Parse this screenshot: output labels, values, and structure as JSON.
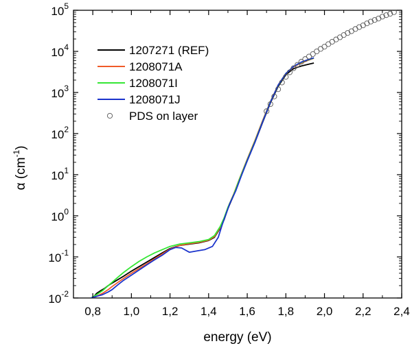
{
  "chart_data": {
    "type": "line",
    "xlabel": "energy (eV)",
    "ylabel": "α (cm-1)",
    "ylabel_symbol": "α",
    "ylabel_unit": "cm",
    "ylabel_unit_exp": "-1",
    "y_scale": "log",
    "xlim": [
      0.7,
      2.4
    ],
    "ylim": [
      0.01,
      100000
    ],
    "x_ticks": [
      "0,8",
      "1,0",
      "1,2",
      "1,4",
      "1,6",
      "1,8",
      "2,0",
      "2,2",
      "2,4"
    ],
    "x_tick_values": [
      0.8,
      1.0,
      1.2,
      1.4,
      1.6,
      1.8,
      2.0,
      2.2,
      2.4
    ],
    "y_ticks": [
      {
        "base": "10",
        "exp": "-2",
        "value": 0.01
      },
      {
        "base": "10",
        "exp": "-1",
        "value": 0.1
      },
      {
        "base": "10",
        "exp": "0",
        "value": 1
      },
      {
        "base": "10",
        "exp": "1",
        "value": 10
      },
      {
        "base": "10",
        "exp": "2",
        "value": 100
      },
      {
        "base": "10",
        "exp": "3",
        "value": 1000
      },
      {
        "base": "10",
        "exp": "4",
        "value": 10000
      },
      {
        "base": "10",
        "exp": "5",
        "value": 100000
      }
    ],
    "legend_position": "top-left",
    "series": [
      {
        "name": "1207271 (REF)",
        "style": "line",
        "color": "#000000",
        "x": [
          0.8,
          0.82,
          0.84,
          0.86,
          0.88,
          0.9,
          0.93,
          0.96,
          1.0,
          1.04,
          1.08,
          1.12,
          1.16,
          1.2,
          1.25,
          1.3,
          1.35,
          1.4,
          1.43,
          1.46,
          1.48,
          1.5,
          1.53,
          1.56,
          1.6,
          1.64,
          1.68,
          1.72,
          1.76,
          1.8,
          1.84,
          1.88,
          1.92,
          1.945
        ],
        "y": [
          0.01,
          0.013,
          0.015,
          0.017,
          0.02,
          0.023,
          0.028,
          0.034,
          0.045,
          0.058,
          0.075,
          0.097,
          0.125,
          0.16,
          0.19,
          0.205,
          0.22,
          0.25,
          0.3,
          0.5,
          0.8,
          1.5,
          3.2,
          7.5,
          22,
          62,
          190,
          560,
          1400,
          2700,
          3800,
          4400,
          4900,
          5200
        ]
      },
      {
        "name": "1208071A",
        "style": "line",
        "color": "#f05a28",
        "x": [
          0.79,
          0.82,
          0.85,
          0.88,
          0.9,
          0.93,
          0.96,
          1.0,
          1.04,
          1.08,
          1.12,
          1.16,
          1.2,
          1.25,
          1.3,
          1.35,
          1.4,
          1.43,
          1.46,
          1.48,
          1.5,
          1.53,
          1.56,
          1.6,
          1.64,
          1.68,
          1.72,
          1.76,
          1.8,
          1.84,
          1.88,
          1.92,
          1.945
        ],
        "y": [
          0.01,
          0.011,
          0.013,
          0.016,
          0.019,
          0.024,
          0.03,
          0.04,
          0.052,
          0.068,
          0.09,
          0.118,
          0.155,
          0.19,
          0.21,
          0.225,
          0.255,
          0.31,
          0.52,
          0.85,
          1.6,
          3.4,
          8,
          24,
          68,
          210,
          600,
          1500,
          2900,
          4200,
          5200,
          6200,
          6800
        ]
      },
      {
        "name": "1208071I",
        "style": "line",
        "color": "#33e633",
        "x": [
          0.79,
          0.82,
          0.85,
          0.88,
          0.9,
          0.93,
          0.96,
          1.0,
          1.04,
          1.08,
          1.12,
          1.16,
          1.2,
          1.25,
          1.3,
          1.35,
          1.4,
          1.43,
          1.46,
          1.48,
          1.5,
          1.53,
          1.56,
          1.6,
          1.64,
          1.68,
          1.72,
          1.76,
          1.8,
          1.84,
          1.88,
          1.92,
          1.945
        ],
        "y": [
          0.01,
          0.012,
          0.015,
          0.02,
          0.024,
          0.032,
          0.042,
          0.058,
          0.078,
          0.1,
          0.125,
          0.15,
          0.18,
          0.205,
          0.22,
          0.235,
          0.265,
          0.33,
          0.55,
          0.88,
          1.6,
          3.3,
          7.8,
          23,
          65,
          200,
          590,
          1480,
          2900,
          4300,
          5400,
          6300,
          6900
        ]
      },
      {
        "name": "1208071J",
        "style": "line",
        "color": "#1a33cc",
        "x": [
          0.79,
          0.82,
          0.85,
          0.88,
          0.9,
          0.93,
          0.96,
          1.0,
          1.04,
          1.08,
          1.12,
          1.16,
          1.2,
          1.23,
          1.26,
          1.3,
          1.34,
          1.38,
          1.42,
          1.45,
          1.47,
          1.49,
          1.51,
          1.54,
          1.57,
          1.6,
          1.64,
          1.68,
          1.72,
          1.76,
          1.8,
          1.84,
          1.88,
          1.92,
          1.945
        ],
        "y": [
          0.01,
          0.011,
          0.012,
          0.014,
          0.016,
          0.021,
          0.027,
          0.036,
          0.048,
          0.064,
          0.085,
          0.11,
          0.15,
          0.17,
          0.165,
          0.13,
          0.14,
          0.15,
          0.18,
          0.3,
          0.6,
          1.1,
          2.0,
          4.0,
          9.5,
          22,
          62,
          195,
          580,
          1500,
          2900,
          4300,
          5500,
          6400,
          7000
        ]
      },
      {
        "name": "PDS on layer",
        "style": "markers",
        "color": "#555555",
        "x": [
          1.7,
          1.72,
          1.74,
          1.76,
          1.78,
          1.8,
          1.82,
          1.84,
          1.86,
          1.88,
          1.9,
          1.92,
          1.94,
          1.96,
          1.98,
          2.0,
          2.02,
          2.04,
          2.06,
          2.08,
          2.1,
          2.12,
          2.14,
          2.16,
          2.18,
          2.2,
          2.22,
          2.24,
          2.26,
          2.28,
          2.3,
          2.32,
          2.34,
          2.36
        ],
        "y": [
          350,
          520,
          800,
          1200,
          1750,
          2400,
          3100,
          3900,
          4700,
          5600,
          6500,
          7500,
          8600,
          10000,
          11500,
          13000,
          15000,
          17200,
          19500,
          22000,
          25000,
          28000,
          31000,
          35000,
          39000,
          43000,
          48000,
          53000,
          58000,
          63000,
          70000,
          76000,
          82000,
          90000
        ]
      }
    ]
  }
}
